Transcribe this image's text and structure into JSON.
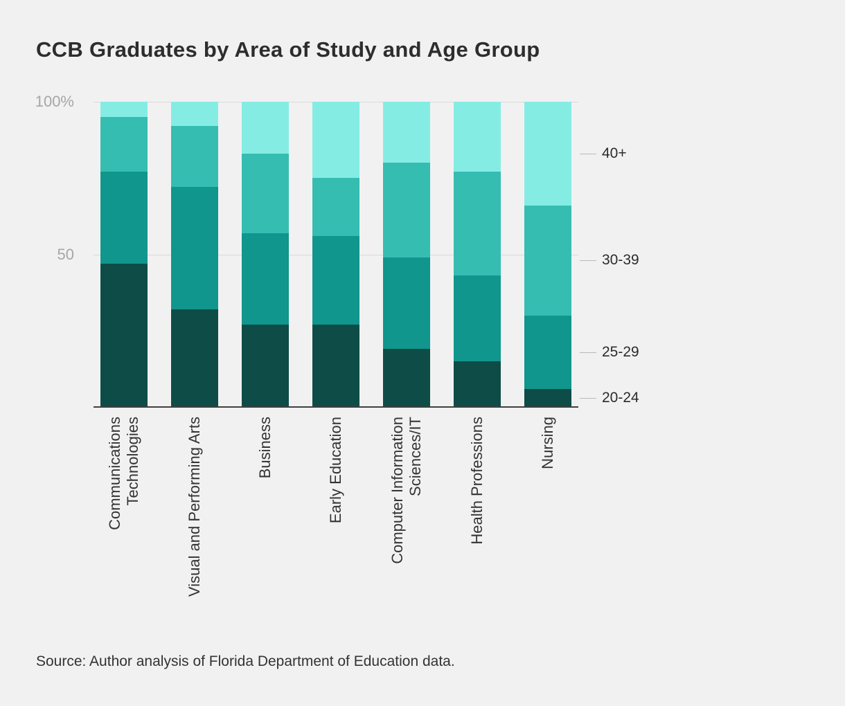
{
  "chart": {
    "title": "CCB Graduates by Area of Study and Age Group",
    "source": "Source: Author analysis of Florida Department of Education data."
  },
  "chart_data": {
    "type": "bar",
    "stacked": true,
    "percent": true,
    "title": "CCB Graduates by Area of Study and Age Group",
    "categories": [
      "Communications Technologies",
      "Visual and Performing Arts",
      "Business",
      "Early Education",
      "Computer Information Sciences/IT",
      "Health Professions",
      "Nursing"
    ],
    "series": [
      {
        "name": "20-24",
        "color": "#0e4c47",
        "values": [
          47,
          32,
          27,
          27,
          19,
          15,
          6
        ]
      },
      {
        "name": "25-29",
        "color": "#10968c",
        "values": [
          30,
          40,
          30,
          29,
          30,
          28,
          24
        ]
      },
      {
        "name": "30-39",
        "color": "#35bdb2",
        "values": [
          18,
          20,
          26,
          19,
          31,
          34,
          36
        ]
      },
      {
        "name": "40+",
        "color": "#85ece4",
        "values": [
          5,
          8,
          17,
          25,
          20,
          23,
          34
        ]
      }
    ],
    "y_ticks": [
      {
        "label": "100%",
        "value": 100
      },
      {
        "label": "50",
        "value": 50
      }
    ],
    "ylim": [
      0,
      100
    ],
    "grid": "horizontal",
    "legend_position": "right-of-last-bar"
  }
}
